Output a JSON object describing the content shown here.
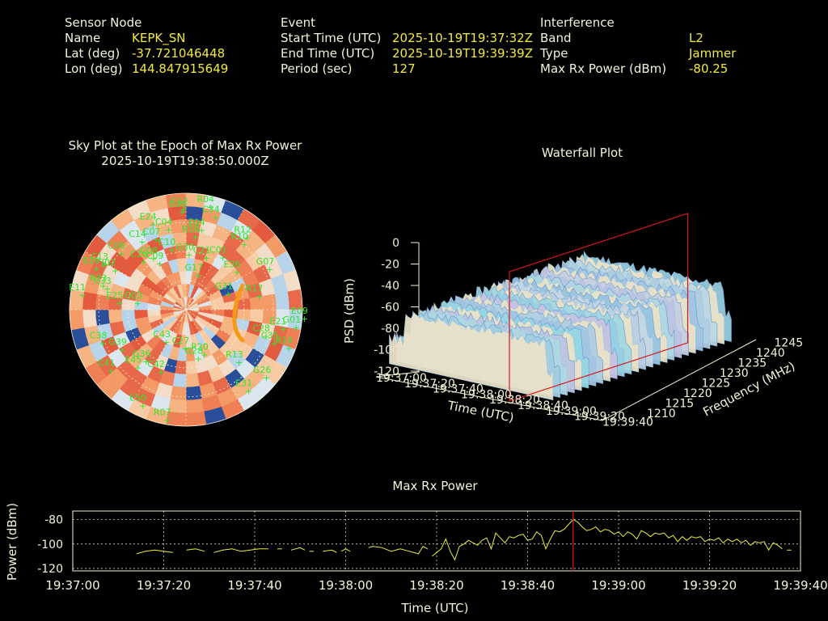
{
  "header": {
    "sensor": {
      "title": "Sensor Node",
      "name_label": "Name",
      "name_value": "KEPK_SN",
      "lat_label": "Lat (deg)",
      "lat_value": "-37.721046448",
      "lon_label": "Lon (deg)",
      "lon_value": "144.847915649"
    },
    "event": {
      "title": "Event",
      "start_label": "Start Time (UTC)",
      "start_value": "2025-10-19T19:37:32Z",
      "end_label": "End Time (UTC)",
      "end_value": "2025-10-19T19:39:39Z",
      "period_label": "Period (sec)",
      "period_value": "127"
    },
    "interference": {
      "title": "Interference",
      "band_label": "Band",
      "band_value": "L2",
      "type_label": "Type",
      "type_value": "Jammer",
      "power_label": "Max Rx Power (dBm)",
      "power_value": "-80.25"
    }
  },
  "colors": {
    "text": "#f3f3d6",
    "value": "#f3e93a",
    "satellite": "#2ee82e",
    "marker": "#d81818",
    "trace": "#f0f040",
    "grid": "#f3f3d6",
    "track": "#f59a16"
  },
  "chart_data": [
    {
      "type": "sky-polar",
      "title": "Sky Plot at the Epoch of Max Rx Power",
      "subtitle": "2025-10-19T19:38:50.000Z",
      "satellites": [
        {
          "id": "R04",
          "az": 10,
          "el": 5
        },
        {
          "id": "C12",
          "az": 356,
          "el": 8
        },
        {
          "id": "C35",
          "az": 355,
          "el": 10
        },
        {
          "id": "C34",
          "az": 14,
          "el": 12
        },
        {
          "id": "E24",
          "az": 337,
          "el": 14
        },
        {
          "id": "C14",
          "az": 326,
          "el": 22
        },
        {
          "id": "C07",
          "az": 335,
          "el": 26
        },
        {
          "id": "C04",
          "az": 345,
          "el": 22
        },
        {
          "id": "E04",
          "az": 7,
          "el": 24
        },
        {
          "id": "R18",
          "az": 3,
          "el": 30
        },
        {
          "id": "R12",
          "az": 36,
          "el": 16
        },
        {
          "id": "R10",
          "az": 37,
          "el": 22
        },
        {
          "id": "C06",
          "az": 311,
          "el": 18
        },
        {
          "id": "C13",
          "az": 300,
          "el": 12
        },
        {
          "id": "C16",
          "az": 318,
          "el": 35
        },
        {
          "id": "C08",
          "az": 326,
          "el": 38
        },
        {
          "id": "C09",
          "az": 328,
          "el": 44
        },
        {
          "id": "C10",
          "az": 343,
          "el": 38
        },
        {
          "id": "G30",
          "az": 358,
          "el": 44
        },
        {
          "id": "C21",
          "az": 15,
          "el": 45
        },
        {
          "id": "C01",
          "az": 29,
          "el": 40
        },
        {
          "id": "G17",
          "az": 10,
          "el": 60
        },
        {
          "id": "E36",
          "az": 47,
          "el": 42
        },
        {
          "id": "G07",
          "az": 60,
          "el": 20
        },
        {
          "id": "R17",
          "az": 75,
          "el": 36
        },
        {
          "id": "G31",
          "az": 61,
          "el": 58
        },
        {
          "id": "E19",
          "az": 296,
          "el": 8
        },
        {
          "id": "R23",
          "az": 288,
          "el": 18
        },
        {
          "id": "J02",
          "az": 300,
          "el": 22
        },
        {
          "id": "C33",
          "az": 287,
          "el": 22
        },
        {
          "id": "E11",
          "az": 280,
          "el": 4
        },
        {
          "id": "E25",
          "az": 279,
          "el": 34
        },
        {
          "id": "G03",
          "az": 282,
          "el": 48
        },
        {
          "id": "E09",
          "az": 92,
          "el": 2
        },
        {
          "id": "G01",
          "az": 97,
          "el": 8
        },
        {
          "id": "E21",
          "az": 99,
          "el": 18
        },
        {
          "id": "C28",
          "az": 106,
          "el": 30
        },
        {
          "id": "C35b",
          "label": "C35",
          "az": 109,
          "el": 22
        },
        {
          "id": "R14",
          "az": 109,
          "el": 10
        },
        {
          "id": "R13",
          "az": 135,
          "el": 38
        },
        {
          "id": "G26",
          "az": 130,
          "el": 14
        },
        {
          "id": "E31",
          "az": 143,
          "el": 16
        },
        {
          "id": "C38",
          "az": 252,
          "el": 18
        },
        {
          "id": "G39",
          "az": 243,
          "el": 30
        },
        {
          "id": "C41",
          "az": 235,
          "el": 14
        },
        {
          "id": "E45",
          "az": 225,
          "el": 32
        },
        {
          "id": "G36",
          "az": 224,
          "el": 40
        },
        {
          "id": "C42",
          "az": 208,
          "el": 40
        },
        {
          "id": "E50",
          "az": 208,
          "el": 10
        },
        {
          "id": "R07",
          "az": 193,
          "el": 6
        },
        {
          "id": "G28",
          "az": 171,
          "el": 56
        },
        {
          "id": "R20",
          "az": 162,
          "el": 58
        },
        {
          "id": "C27",
          "az": 190,
          "el": 64
        },
        {
          "id": "C43",
          "az": 222,
          "el": 62
        }
      ],
      "cells": {
        "rings": 9,
        "sectors": 36
      }
    },
    {
      "type": "3d-surface",
      "title": "Waterfall Plot",
      "zlabel": "PSD (dBm)",
      "xlabel": "Time (UTC)",
      "ylabel": "Frequency (MHz)",
      "zticks": [
        "0",
        "-20",
        "-40",
        "-60",
        "-80",
        "-100",
        "-120"
      ],
      "xticks": [
        "19:37:00",
        "19:37:20",
        "19:37:40",
        "19:38:00",
        "19:38:20",
        "19:38:40",
        "19:39:00",
        "19:39:20",
        "19:39:40"
      ],
      "yticks": [
        "1210",
        "1215",
        "1220",
        "1225",
        "1230",
        "1235",
        "1240",
        "1245"
      ],
      "zlim": [
        -120,
        0
      ],
      "ylim": [
        1210,
        1245
      ],
      "surface_level_dBm": -60,
      "noise_floor_dBm": -110,
      "marker_time": "19:38:50"
    },
    {
      "type": "line",
      "title": "Max Rx Power",
      "xlabel": "Time (UTC)",
      "ylabel": "Power (dBm)",
      "xticks": [
        "19:37:00",
        "19:37:20",
        "19:37:40",
        "19:38:00",
        "19:38:20",
        "19:38:40",
        "19:39:00",
        "19:39:20",
        "19:39:40"
      ],
      "yticks": [
        "-80",
        "-100",
        "-120"
      ],
      "ylim": [
        -122,
        -73
      ],
      "xlim": [
        0,
        160
      ],
      "marker_x": 110,
      "grid": true,
      "segments": [
        [
          [
            14,
            -108
          ],
          [
            16,
            -106
          ],
          [
            18,
            -105
          ],
          [
            20,
            -106
          ],
          [
            22,
            -107
          ]
        ],
        [
          [
            25,
            -105
          ],
          [
            27,
            -104
          ],
          [
            29,
            -106
          ]
        ],
        [
          [
            31,
            -107
          ],
          [
            33,
            -105
          ],
          [
            35,
            -104
          ],
          [
            37,
            -106
          ],
          [
            39,
            -105
          ],
          [
            41,
            -104
          ],
          [
            43,
            -104
          ]
        ],
        [
          [
            45,
            -104
          ],
          [
            46,
            -104
          ]
        ],
        [
          [
            48,
            -105
          ],
          [
            50,
            -103
          ],
          [
            51,
            -105
          ]
        ],
        [
          [
            52,
            -106
          ],
          [
            53,
            -106
          ]
        ],
        [
          [
            55,
            -106
          ],
          [
            57,
            -105
          ],
          [
            58,
            -107
          ]
        ],
        [
          [
            59,
            -106
          ],
          [
            60,
            -104
          ],
          [
            61,
            -106
          ]
        ],
        [
          [
            65,
            -103
          ],
          [
            66,
            -102
          ],
          [
            68,
            -103
          ],
          [
            70,
            -106
          ],
          [
            72,
            -104
          ],
          [
            74,
            -106
          ],
          [
            76,
            -108
          ],
          [
            77,
            -102
          ],
          [
            78,
            -104
          ]
        ],
        [
          [
            79,
            -110
          ],
          [
            80,
            -107
          ],
          [
            81,
            -104
          ],
          [
            82,
            -96
          ],
          [
            83,
            -106
          ],
          [
            84,
            -113
          ],
          [
            85,
            -102
          ],
          [
            86,
            -100
          ],
          [
            87,
            -97
          ],
          [
            88,
            -99
          ],
          [
            89,
            -101
          ],
          [
            90,
            -97
          ],
          [
            91,
            -95
          ],
          [
            92,
            -104
          ],
          [
            93,
            -91
          ],
          [
            94,
            -95
          ],
          [
            95,
            -99
          ],
          [
            96,
            -94
          ],
          [
            97,
            -95
          ],
          [
            98,
            -93
          ],
          [
            99,
            -92
          ],
          [
            100,
            -97
          ],
          [
            101,
            -96
          ],
          [
            102,
            -90
          ],
          [
            103,
            -93
          ],
          [
            104,
            -104
          ],
          [
            105,
            -96
          ],
          [
            106,
            -89
          ],
          [
            107,
            -90
          ],
          [
            108,
            -88
          ],
          [
            109,
            -84
          ],
          [
            110,
            -80
          ],
          [
            111,
            -82
          ],
          [
            112,
            -86
          ],
          [
            113,
            -89
          ],
          [
            114,
            -88
          ],
          [
            115,
            -86
          ],
          [
            116,
            -90
          ],
          [
            117,
            -88
          ],
          [
            118,
            -89
          ],
          [
            119,
            -92
          ],
          [
            120,
            -90
          ],
          [
            121,
            -94
          ],
          [
            122,
            -90
          ],
          [
            123,
            -92
          ],
          [
            124,
            -96
          ],
          [
            125,
            -89
          ],
          [
            126,
            -91
          ],
          [
            127,
            -94
          ],
          [
            128,
            -91
          ],
          [
            129,
            -92
          ],
          [
            130,
            -91
          ],
          [
            131,
            -95
          ],
          [
            132,
            -93
          ],
          [
            133,
            -98
          ],
          [
            134,
            -94
          ],
          [
            135,
            -97
          ],
          [
            136,
            -94
          ],
          [
            137,
            -95
          ],
          [
            138,
            -94
          ],
          [
            139,
            -98
          ],
          [
            140,
            -96
          ],
          [
            141,
            -97
          ],
          [
            142,
            -95
          ],
          [
            143,
            -99
          ],
          [
            144,
            -96
          ],
          [
            145,
            -98
          ],
          [
            146,
            -96
          ],
          [
            147,
            -99
          ],
          [
            148,
            -97
          ],
          [
            149,
            -101
          ],
          [
            150,
            -98
          ],
          [
            151,
            -99
          ],
          [
            152,
            -98
          ],
          [
            153,
            -105
          ],
          [
            154,
            -99
          ],
          [
            155,
            -101
          ],
          [
            156,
            -104
          ]
        ],
        [
          [
            157,
            -105
          ],
          [
            158,
            -105
          ]
        ]
      ]
    }
  ]
}
